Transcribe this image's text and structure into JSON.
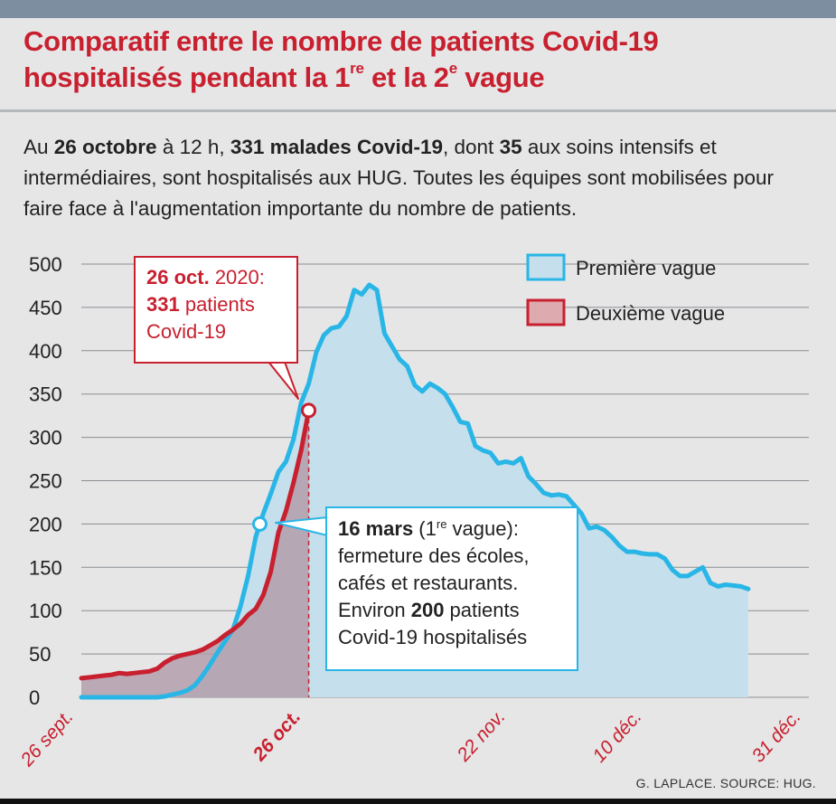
{
  "header": {
    "title_line1": "Comparatif entre le nombre de patients Covid-19",
    "title_line2_a": "hospitalisés pendant la 1",
    "title_line2_sup1": "re",
    "title_line2_b": " et la 2",
    "title_line2_sup2": "e",
    "title_line2_c": " vague"
  },
  "intro": {
    "p1": "Au ",
    "b1": "26 octobre",
    "p2": " à 12 h, ",
    "b2": "331 malades Covid-19",
    "p3": ", dont ",
    "b3": "35",
    "p4": " aux soins intensifs et intermédiaires, sont hospitalisés aux HUG. Toutes les équipes sont mobilisées pour faire face à l'augmentation importante du nombre de patients."
  },
  "callout_second": {
    "date_bold": "26 oct.",
    "year": " 2020:",
    "count_bold": "331",
    "count_text": " patients",
    "line3": "Covid-19"
  },
  "callout_first": {
    "date_bold": "16 mars",
    "paren_a": " (1",
    "paren_sup": "re",
    "paren_b": " vague):",
    "line2": "fermeture des écoles,",
    "line3": "cafés et restaurants.",
    "line4_a": "Environ ",
    "line4_bold": "200",
    "line4_b": " patients",
    "line5": "Covid-19 hospitalisés"
  },
  "credit": "G. LAPLACE. SOURCE: HUG.",
  "colors": {
    "first_wave_line": "#29b6e6",
    "first_wave_fill": "#c5dfec",
    "second_wave_line": "#c8202f",
    "second_wave_fill": "#b39eab",
    "title": "#c8202f",
    "background": "#e6e6e7"
  },
  "chart_data": {
    "type": "area",
    "ylim": [
      0,
      500
    ],
    "yticks": [
      0,
      50,
      100,
      150,
      200,
      250,
      300,
      350,
      400,
      450,
      500
    ],
    "xlim": [
      0,
      96
    ],
    "x_tick_labels": [
      {
        "day": 0,
        "label": "26 sept.",
        "bold": false
      },
      {
        "day": 30,
        "label": "26 oct.",
        "bold": true
      },
      {
        "day": 57,
        "label": "22 nov.",
        "bold": false
      },
      {
        "day": 75,
        "label": "10 déc.",
        "bold": false
      },
      {
        "day": 96,
        "label": "31 déc.",
        "bold": false
      }
    ],
    "marker_day": 30,
    "legend_position": "top-right",
    "series": [
      {
        "name": "Première vague",
        "values": [
          0,
          0,
          0,
          0,
          0,
          0,
          0,
          0,
          0,
          0,
          0,
          1,
          3,
          5,
          8,
          14,
          25,
          38,
          52,
          65,
          78,
          105,
          140,
          185,
          212,
          235,
          260,
          272,
          298,
          340,
          362,
          398,
          418,
          426,
          428,
          440,
          470,
          465,
          476,
          470,
          420,
          405,
          390,
          382,
          360,
          353,
          362,
          357,
          350,
          335,
          318,
          316,
          290,
          285,
          282,
          270,
          272,
          270,
          276,
          255,
          246,
          236,
          233,
          234,
          232,
          222,
          212,
          195,
          197,
          193,
          185,
          175,
          168,
          168,
          166,
          165,
          165,
          160,
          147,
          140,
          140,
          145,
          150,
          132,
          128,
          130,
          129,
          128,
          125
        ]
      },
      {
        "name": "Deuxième vague",
        "values": [
          22,
          23,
          24,
          25,
          26,
          28,
          27,
          28,
          29,
          30,
          33,
          40,
          45,
          48,
          50,
          52,
          55,
          60,
          65,
          72,
          78,
          85,
          95,
          102,
          118,
          145,
          190,
          215,
          248,
          285,
          331
        ]
      }
    ]
  }
}
